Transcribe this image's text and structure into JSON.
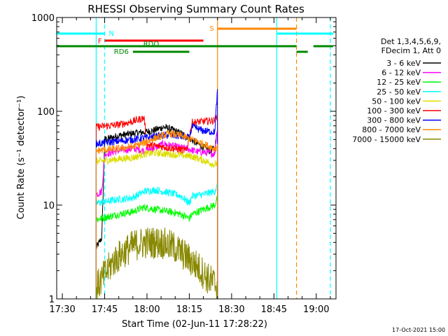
{
  "chart_data": {
    "type": "line",
    "title": "RHESSI Observing Summary Count Rates",
    "xlabel": "Start Time (02-Jun-11 17:28:22)",
    "ylabel": "Count Rate (s⁻¹ detector⁻¹)",
    "x_unit": "minutes",
    "xlim": [
      "17:28",
      "19:07"
    ],
    "ylim": [
      1,
      1000
    ],
    "yscale": "log",
    "x_ticks": [
      "17:30",
      "17:45",
      "18:00",
      "18:15",
      "18:30",
      "18:45",
      "19:00"
    ],
    "y_ticks": [
      "1",
      "10",
      "100",
      "1000"
    ],
    "legend": {
      "placement": "right",
      "header": [
        "Det 1,3,4,5,6,9,",
        "FDecim 1, Att 0"
      ]
    },
    "footer_date": "17-Oct-2021 15:00",
    "series": [
      {
        "name": "3 - 6 keV",
        "color": "#000000",
        "points": [
          [
            "17:42",
            3.5
          ],
          [
            "17:44",
            4.5
          ],
          [
            "17:45",
            50
          ],
          [
            "17:50",
            55
          ],
          [
            "17:55",
            58
          ],
          [
            "17:59",
            60
          ],
          [
            "18:02",
            62
          ],
          [
            "18:06",
            68
          ],
          [
            "18:10",
            62
          ],
          [
            "18:14",
            54
          ],
          [
            "18:18",
            45
          ],
          [
            "18:22",
            38
          ],
          [
            "18:24",
            40
          ],
          [
            "18:25",
            62
          ]
        ]
      },
      {
        "name": "6 - 12 keV",
        "color": "#ff00ff",
        "points": [
          [
            "17:42",
            13
          ],
          [
            "17:44",
            14
          ],
          [
            "17:45",
            35
          ],
          [
            "17:50",
            38
          ],
          [
            "17:55",
            40
          ],
          [
            "17:59",
            38
          ],
          [
            "18:02",
            40
          ],
          [
            "18:06",
            45
          ],
          [
            "18:10",
            42
          ],
          [
            "18:14",
            40
          ],
          [
            "18:18",
            37
          ],
          [
            "18:22",
            36
          ],
          [
            "18:24",
            35
          ],
          [
            "18:25",
            70
          ]
        ]
      },
      {
        "name": "12 - 25 keV",
        "color": "#00ff00",
        "points": [
          [
            "17:42",
            7
          ],
          [
            "17:50",
            8
          ],
          [
            "17:55",
            8.5
          ],
          [
            "17:59",
            9.5
          ],
          [
            "18:03",
            9
          ],
          [
            "18:08",
            8.5
          ],
          [
            "18:12",
            8
          ],
          [
            "18:15",
            7.2
          ],
          [
            "18:16",
            8
          ],
          [
            "18:20",
            9
          ],
          [
            "18:24",
            10
          ],
          [
            "18:25",
            12
          ]
        ]
      },
      {
        "name": "25 - 50 keV",
        "color": "#00ffff",
        "points": [
          [
            "17:42",
            10.5
          ],
          [
            "17:50",
            11.5
          ],
          [
            "17:55",
            12
          ],
          [
            "17:59",
            14
          ],
          [
            "18:03",
            14.5
          ],
          [
            "18:08",
            13.5
          ],
          [
            "18:12",
            12.5
          ],
          [
            "18:15",
            10.5
          ],
          [
            "18:16",
            12.5
          ],
          [
            "18:20",
            13
          ],
          [
            "18:24",
            14
          ],
          [
            "18:25",
            16
          ]
        ]
      },
      {
        "name": "50 - 100 keV",
        "color": "#dddd00",
        "points": [
          [
            "17:42",
            29
          ],
          [
            "17:50",
            31
          ],
          [
            "17:55",
            32
          ],
          [
            "17:59",
            35
          ],
          [
            "18:03",
            36
          ],
          [
            "18:08",
            35
          ],
          [
            "18:12",
            34
          ],
          [
            "18:16",
            33
          ],
          [
            "18:20",
            30
          ],
          [
            "18:24",
            27
          ],
          [
            "18:25",
            28
          ]
        ]
      },
      {
        "name": "100 - 300 keV",
        "color": "#ff0000",
        "points": [
          [
            "17:42",
            68
          ],
          [
            "17:50",
            72
          ],
          [
            "17:55",
            78
          ],
          [
            "17:59",
            85
          ],
          [
            "18:00",
            44
          ],
          [
            "18:05",
            42
          ],
          [
            "18:10",
            40
          ],
          [
            "18:14",
            38
          ],
          [
            "18:16",
            76
          ],
          [
            "18:20",
            78
          ],
          [
            "18:24",
            80
          ],
          [
            "18:25",
            90
          ]
        ]
      },
      {
        "name": "300 - 800 keV",
        "color": "#0000ff",
        "points": [
          [
            "17:42",
            45
          ],
          [
            "17:50",
            48
          ],
          [
            "17:55",
            50
          ],
          [
            "17:59",
            52
          ],
          [
            "18:03",
            54
          ],
          [
            "18:08",
            56
          ],
          [
            "18:12",
            54
          ],
          [
            "18:15",
            52
          ],
          [
            "18:16",
            68
          ],
          [
            "18:20",
            62
          ],
          [
            "18:24",
            60
          ],
          [
            "18:25",
            170
          ]
        ]
      },
      {
        "name": "800 - 7000 keV",
        "color": "#ff8800",
        "points": [
          [
            "17:42",
            38
          ],
          [
            "17:50",
            40
          ],
          [
            "17:55",
            42
          ],
          [
            "17:59",
            46
          ],
          [
            "18:03",
            52
          ],
          [
            "18:08",
            58
          ],
          [
            "18:12",
            55
          ],
          [
            "18:16",
            50
          ],
          [
            "18:20",
            45
          ],
          [
            "18:24",
            40
          ],
          [
            "18:25",
            42
          ]
        ]
      },
      {
        "name": "7000 - 15000 keV",
        "color": "#888800",
        "points": [
          [
            "17:42",
            1.3
          ],
          [
            "17:45",
            1.8
          ],
          [
            "17:48",
            2.5
          ],
          [
            "17:52",
            3.2
          ],
          [
            "17:56",
            3.8
          ],
          [
            "18:00",
            4
          ],
          [
            "18:05",
            4
          ],
          [
            "18:10",
            3.5
          ],
          [
            "18:14",
            2.8
          ],
          [
            "18:18",
            2.2
          ],
          [
            "18:22",
            1.6
          ],
          [
            "18:25",
            1.4
          ]
        ]
      }
    ],
    "flag_bars": [
      {
        "label": "N",
        "color": "#00ffff",
        "level": 1,
        "segments": [
          [
            "17:28",
            "17:45"
          ],
          [
            "18:46",
            "19:06"
          ]
        ]
      },
      {
        "label": "S",
        "color": "#ff8800",
        "level": 0,
        "segments": [
          [
            "18:25",
            "18:53"
          ]
        ]
      },
      {
        "label": "F",
        "color": "#ff0000",
        "level": 2,
        "segments": [
          [
            "17:45",
            "18:20"
          ]
        ]
      },
      {
        "label": "RDO",
        "color": "#008800",
        "level": 3,
        "segments": [
          [
            "17:28",
            "18:53"
          ],
          [
            "18:59",
            "19:06"
          ]
        ]
      },
      {
        "label": "RD6",
        "color": "#008800",
        "level": 4,
        "segments": [
          [
            "17:55",
            "18:15"
          ],
          [
            "18:53",
            "18:57"
          ]
        ]
      }
    ],
    "vertical_lines": [
      {
        "x": "17:42",
        "color": "#00ffff",
        "style": "solid"
      },
      {
        "x": "17:45",
        "color": "#00ffff",
        "style": "dashed"
      },
      {
        "x": "18:25",
        "color": "#ff8800",
        "style": "solid"
      },
      {
        "x": "18:46",
        "color": "#00ffff",
        "style": "solid"
      },
      {
        "x": "18:53",
        "color": "#ff8800",
        "style": "dashed"
      },
      {
        "x": "19:05",
        "color": "#00ffff",
        "style": "dashed"
      }
    ]
  }
}
